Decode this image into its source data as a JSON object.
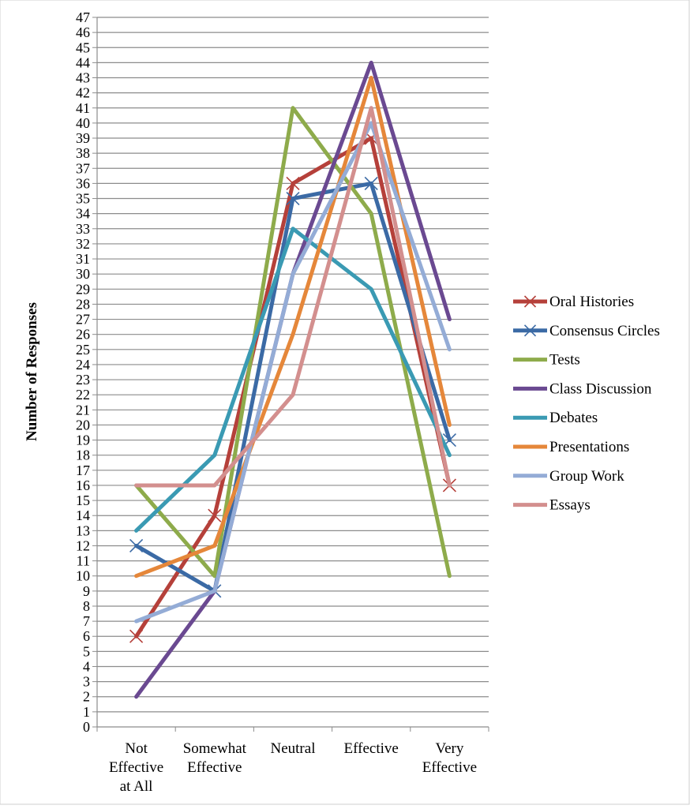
{
  "chart_data": {
    "type": "line",
    "title": "",
    "ylabel": "Number of Responses",
    "xlabel": "",
    "ylim": [
      0,
      47
    ],
    "ytick_step": 1,
    "grid": true,
    "legend_position": "right",
    "categories": [
      [
        "Not",
        "Effective",
        "at All"
      ],
      [
        "Somewhat",
        "Effective"
      ],
      [
        "Neutral"
      ],
      [
        "Effective"
      ],
      [
        "Very",
        "Effective"
      ]
    ],
    "series": [
      {
        "name": "Oral Histories",
        "color": "#b5403a",
        "marker": "x",
        "values": [
          6,
          14,
          36,
          39,
          16
        ]
      },
      {
        "name": "Consensus Circles",
        "color": "#3b6aa5",
        "marker": "x",
        "values": [
          12,
          9,
          35,
          36,
          19
        ]
      },
      {
        "name": "Tests",
        "color": "#8eab4b",
        "marker": "none",
        "values": [
          16,
          10,
          41,
          34,
          10
        ]
      },
      {
        "name": "Class Discussion",
        "color": "#6a4991",
        "marker": "none",
        "values": [
          2,
          9,
          30,
          44,
          27
        ]
      },
      {
        "name": "Debates",
        "color": "#3a9ab3",
        "marker": "none",
        "values": [
          13,
          18,
          33,
          29,
          18
        ]
      },
      {
        "name": "Presentations",
        "color": "#e5873a",
        "marker": "none",
        "values": [
          10,
          12,
          26,
          43,
          20
        ]
      },
      {
        "name": "Group Work",
        "color": "#94acd6",
        "marker": "none",
        "values": [
          7,
          9,
          30,
          40,
          25
        ]
      },
      {
        "name": "Essays",
        "color": "#d38f8e",
        "marker": "none",
        "values": [
          16,
          16,
          22,
          41,
          16
        ]
      }
    ]
  }
}
